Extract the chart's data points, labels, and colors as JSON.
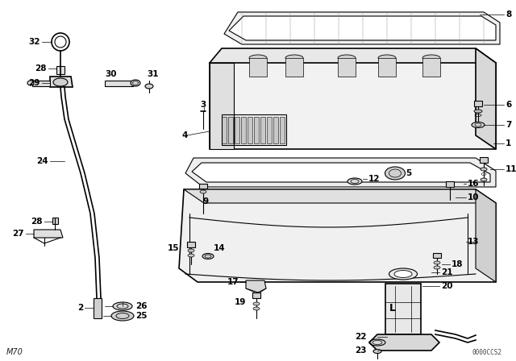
{
  "background_color": "#ffffff",
  "line_color": "#000000",
  "figsize": [
    6.4,
    4.48
  ],
  "dpi": 100,
  "watermark": "0000CCS2",
  "model": "M70"
}
